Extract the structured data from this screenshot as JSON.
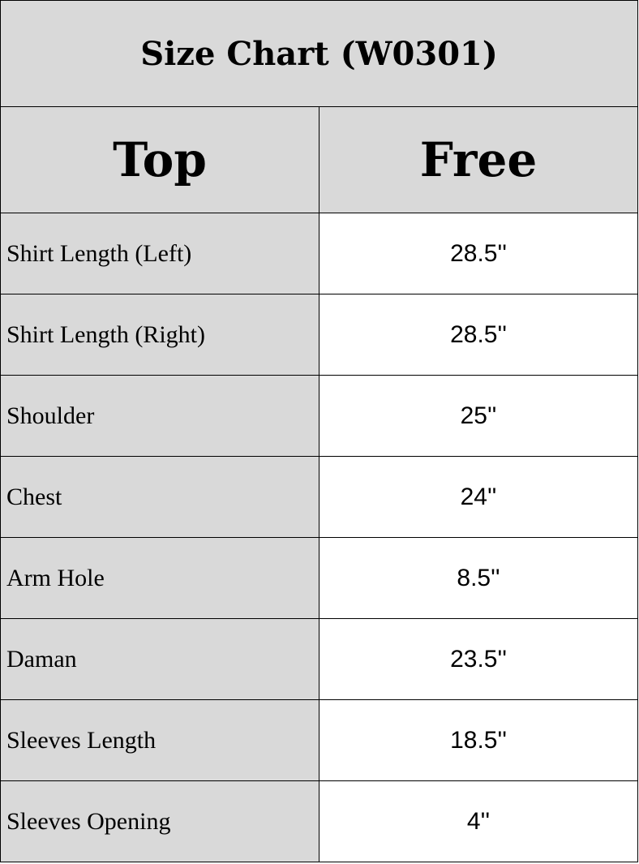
{
  "title": "Size Chart (W0301)",
  "header": {
    "col1": "Top",
    "col2": "Free"
  },
  "rows": [
    {
      "label": "Shirt Length (Left)",
      "value": "28.5''"
    },
    {
      "label": "Shirt Length (Right)",
      "value": "28.5''"
    },
    {
      "label": "Shoulder",
      "value": "25''"
    },
    {
      "label": "Chest",
      "value": "24''"
    },
    {
      "label": "Arm Hole",
      "value": "8.5''"
    },
    {
      "label": "Daman",
      "value": "23.5''"
    },
    {
      "label": "Sleeves Length",
      "value": "18.5''"
    },
    {
      "label": "Sleeves Opening",
      "value": "4''"
    }
  ],
  "colors": {
    "header_bg": "#d9d9d9",
    "value_bg": "#ffffff",
    "border": "#000000"
  }
}
